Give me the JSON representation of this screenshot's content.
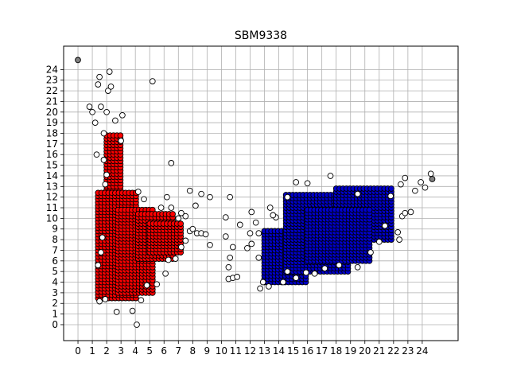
{
  "chart_data": {
    "type": "scatter",
    "title": "SBM9338",
    "xlabel": "",
    "ylabel": "",
    "xlim": [
      -1,
      26.5
    ],
    "ylim": [
      -1.5,
      26.2
    ],
    "xticks": [
      "0",
      "1",
      "2",
      "3",
      "4",
      "5",
      "6",
      "7",
      "8",
      "9",
      "10",
      "11",
      "12",
      "13",
      "14",
      "15",
      "16",
      "17",
      "18",
      "19",
      "20",
      "21",
      "22",
      "23",
      "24"
    ],
    "yticks": [
      "0",
      "1",
      "2",
      "3",
      "4",
      "5",
      "6",
      "7",
      "8",
      "9",
      "10",
      "11",
      "12",
      "13",
      "14",
      "15",
      "16",
      "17",
      "18",
      "19",
      "20",
      "21",
      "22",
      "23",
      "24"
    ],
    "grid": true,
    "colors": {
      "red_cluster": "#ff0000",
      "blue_cluster": "#0000cc",
      "noise": "#ffffff",
      "extreme": "#808080",
      "edge": "#000000",
      "grid": "#b0b0b0"
    },
    "series": [
      {
        "color": "red",
        "regions": [
          {
            "x": [
              2.0,
              3.0
            ],
            "y": [
              5.5,
              18.0
            ]
          },
          {
            "x": [
              1.4,
              4.2
            ],
            "y": [
              2.5,
              12.5
            ]
          },
          {
            "x": [
              2.8,
              5.2
            ],
            "y": [
              3.0,
              11.0
            ]
          },
          {
            "x": [
              4.2,
              6.8
            ],
            "y": [
              6.2,
              10.6
            ]
          },
          {
            "x": [
              5.0,
              7.2
            ],
            "y": [
              6.8,
              9.5
            ]
          }
        ]
      },
      {
        "color": "blue",
        "regions": [
          {
            "x": [
              13.0,
              16.0
            ],
            "y": [
              4.0,
              9.0
            ]
          },
          {
            "x": [
              14.5,
              19.0
            ],
            "y": [
              5.0,
              12.2
            ]
          },
          {
            "x": [
              18.0,
              22.0
            ],
            "y": [
              8.0,
              13.0
            ]
          },
          {
            "x": [
              16.0,
              20.5
            ],
            "y": [
              6.0,
              11.0
            ]
          }
        ]
      },
      {
        "color": "white",
        "points": [
          [
            0.8,
            20.5
          ],
          [
            1.0,
            20.0
          ],
          [
            1.2,
            19.0
          ],
          [
            1.4,
            22.6
          ],
          [
            1.5,
            23.3
          ],
          [
            1.6,
            20.5
          ],
          [
            1.8,
            18.0
          ],
          [
            2.0,
            20.0
          ],
          [
            2.1,
            22.0
          ],
          [
            2.2,
            23.8
          ],
          [
            2.3,
            22.4
          ],
          [
            2.6,
            19.2
          ],
          [
            3.1,
            19.7
          ],
          [
            3.0,
            17.3
          ],
          [
            5.2,
            22.9
          ],
          [
            6.5,
            15.2
          ],
          [
            1.3,
            16.0
          ],
          [
            1.8,
            15.5
          ],
          [
            2.0,
            14.1
          ],
          [
            1.9,
            13.2
          ],
          [
            1.7,
            8.2
          ],
          [
            1.6,
            6.8
          ],
          [
            1.4,
            5.6
          ],
          [
            1.5,
            2.2
          ],
          [
            1.9,
            2.4
          ],
          [
            2.7,
            1.2
          ],
          [
            3.8,
            1.3
          ],
          [
            4.1,
            0.0
          ],
          [
            4.4,
            2.3
          ],
          [
            4.8,
            3.7
          ],
          [
            5.5,
            3.8
          ],
          [
            6.1,
            4.8
          ],
          [
            6.3,
            6.1
          ],
          [
            6.8,
            6.2
          ],
          [
            7.2,
            7.3
          ],
          [
            7.5,
            7.9
          ],
          [
            7.8,
            8.8
          ],
          [
            8.0,
            9.0
          ],
          [
            8.3,
            8.6
          ],
          [
            8.6,
            8.6
          ],
          [
            8.9,
            8.5
          ],
          [
            9.2,
            7.5
          ],
          [
            8.2,
            11.2
          ],
          [
            8.6,
            12.3
          ],
          [
            7.8,
            12.6
          ],
          [
            9.2,
            12.0
          ],
          [
            6.2,
            12.0
          ],
          [
            6.5,
            11.0
          ],
          [
            7.2,
            10.5
          ],
          [
            7.5,
            10.2
          ],
          [
            7.0,
            10.0
          ],
          [
            5.8,
            11.0
          ],
          [
            4.2,
            12.5
          ],
          [
            4.6,
            11.8
          ],
          [
            10.3,
            10.1
          ],
          [
            10.6,
            12.0
          ],
          [
            10.8,
            7.3
          ],
          [
            10.6,
            6.3
          ],
          [
            10.5,
            5.4
          ],
          [
            10.5,
            4.3
          ],
          [
            10.8,
            4.4
          ],
          [
            11.1,
            4.5
          ],
          [
            10.3,
            8.3
          ],
          [
            11.3,
            9.4
          ],
          [
            11.8,
            7.2
          ],
          [
            12.0,
            8.6
          ],
          [
            12.1,
            7.6
          ],
          [
            12.1,
            10.6
          ],
          [
            12.4,
            9.6
          ],
          [
            12.6,
            8.6
          ],
          [
            12.6,
            6.3
          ],
          [
            12.9,
            4.0
          ],
          [
            12.7,
            3.4
          ],
          [
            13.3,
            3.6
          ],
          [
            13.4,
            11.0
          ],
          [
            13.8,
            10.1
          ],
          [
            14.3,
            4.0
          ],
          [
            14.6,
            5.0
          ],
          [
            15.2,
            4.4
          ],
          [
            15.9,
            4.9
          ],
          [
            16.5,
            4.8
          ],
          [
            17.2,
            5.3
          ],
          [
            18.2,
            5.6
          ],
          [
            19.5,
            5.4
          ],
          [
            20.4,
            6.8
          ],
          [
            21.0,
            7.8
          ],
          [
            21.4,
            9.3
          ],
          [
            22.3,
            8.7
          ],
          [
            22.4,
            8.0
          ],
          [
            22.6,
            10.2
          ],
          [
            22.8,
            10.5
          ],
          [
            23.2,
            10.6
          ],
          [
            23.5,
            12.6
          ],
          [
            23.9,
            13.4
          ],
          [
            24.2,
            12.9
          ],
          [
            24.6,
            14.2
          ],
          [
            22.8,
            13.8
          ],
          [
            22.5,
            13.2
          ],
          [
            21.8,
            12.1
          ],
          [
            19.5,
            12.3
          ],
          [
            17.6,
            14.0
          ],
          [
            16.0,
            13.3
          ],
          [
            15.2,
            13.4
          ],
          [
            14.6,
            12.0
          ],
          [
            13.6,
            10.3
          ]
        ]
      },
      {
        "color": "gray",
        "points": [
          [
            0.0,
            24.9
          ],
          [
            24.7,
            13.7
          ]
        ]
      }
    ]
  }
}
